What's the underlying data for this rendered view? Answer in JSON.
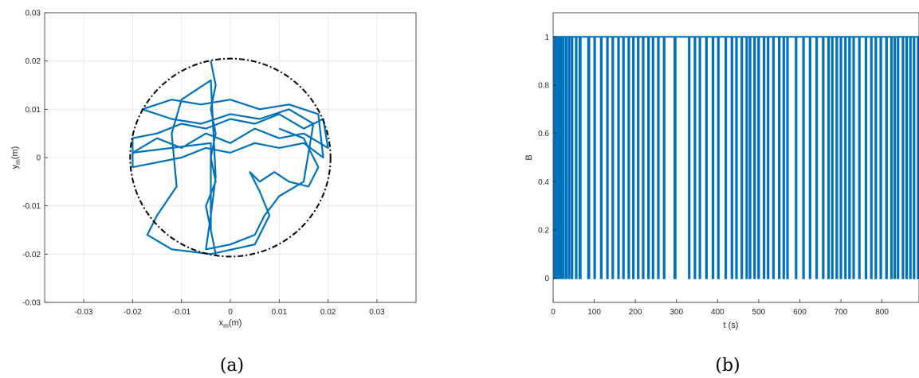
{
  "chart_data": [
    {
      "type": "line",
      "panel_label": "(a)",
      "xlabel": "x",
      "xlabel_sub": "m",
      "xlabel_unit": "(m)",
      "ylabel": "y",
      "ylabel_sub": "m",
      "ylabel_unit": "(m)",
      "xlim": [
        -0.038,
        0.038
      ],
      "ylim": [
        -0.03,
        0.03
      ],
      "xticks": [
        -0.03,
        -0.02,
        -0.01,
        0,
        0.01,
        0.02,
        0.03
      ],
      "xtick_labels": [
        "-0.03",
        "-0.02",
        "-0.01",
        "0",
        "0.01",
        "0.02",
        "0.03"
      ],
      "yticks": [
        -0.03,
        -0.02,
        -0.01,
        0,
        0.01,
        0.02,
        0.03
      ],
      "ytick_labels": [
        "-0.03",
        "-0.02",
        "-0.01",
        "0",
        "0.01",
        "0.02",
        "0.03"
      ],
      "grid": true,
      "series": [
        {
          "style": "solid",
          "color": "#0072BD",
          "x": [
            -0.004,
            -0.003,
            -0.004,
            -0.003,
            -0.004,
            -0.003,
            -0.005,
            -0.004,
            -0.003,
            -0.004,
            -0.004,
            -0.02,
            -0.015,
            -0.01,
            -0.005,
            0,
            0.005,
            0.01,
            0.015,
            0.02,
            0.019,
            0.015,
            0.01,
            0.005,
            0,
            -0.005,
            -0.01,
            -0.015,
            -0.02,
            -0.02,
            -0.015,
            -0.01,
            -0.005,
            0,
            0.005,
            0.01,
            0.015,
            0.019,
            0.018,
            0.012,
            0.006,
            0.0,
            -0.006,
            -0.012,
            -0.018,
            -0.012,
            -0.006,
            0.0,
            0.006,
            0.012,
            0.017,
            0.015,
            0.01,
            0.007,
            0.005,
            0.0,
            -0.005,
            -0.004,
            -0.003,
            -0.004,
            -0.01,
            -0.012,
            -0.011,
            -0.015,
            -0.017,
            -0.012,
            -0.004,
            0.005,
            0.008,
            0.006,
            0.004,
            0.006,
            0.009,
            0.012,
            0.016,
            0.018,
            0.015,
            0.01
          ],
          "y": [
            0.02,
            0.015,
            0.01,
            0.005,
            0.0,
            -0.005,
            -0.01,
            -0.015,
            -0.02,
            -0.015,
            0.003,
            0.001,
            0.004,
            0.002,
            0.005,
            0.003,
            0.006,
            0.004,
            0.005,
            0.002,
            0.008,
            0.006,
            0.009,
            0.007,
            0.008,
            0.006,
            0.007,
            0.005,
            0.004,
            -0.002,
            -0.001,
            0.0,
            0.002,
            0.001,
            0.003,
            0.002,
            0.003,
            0.0,
            0.009,
            0.011,
            0.01,
            0.012,
            0.011,
            0.012,
            0.01,
            0.008,
            0.007,
            0.009,
            0.008,
            0.01,
            0.007,
            -0.005,
            -0.008,
            -0.012,
            -0.016,
            -0.018,
            -0.019,
            -0.012,
            -0.004,
            0.016,
            0.012,
            0.005,
            -0.006,
            -0.012,
            -0.016,
            -0.019,
            -0.02,
            -0.018,
            -0.012,
            -0.007,
            -0.003,
            -0.005,
            -0.003,
            -0.005,
            -0.006,
            -0.002,
            0.004,
            0.006
          ]
        },
        {
          "style": "dashdot",
          "color": "#000000",
          "shape": "circle",
          "center": [
            0,
            0
          ],
          "radius": 0.0205
        }
      ]
    },
    {
      "type": "line",
      "panel_label": "(b)",
      "xlabel": "t (s)",
      "ylabel": "B",
      "xlim": [
        0,
        890
      ],
      "ylim": [
        -0.1,
        1.1
      ],
      "xticks": [
        0,
        100,
        200,
        300,
        400,
        500,
        600,
        700,
        800
      ],
      "xtick_labels": [
        "0",
        "100",
        "200",
        "300",
        "400",
        "500",
        "600",
        "700",
        "800"
      ],
      "yticks": [
        0,
        0.2,
        0.4,
        0.6,
        0.8,
        1
      ],
      "ytick_labels": [
        "0",
        "0.2",
        "0.4",
        "0.6",
        "0.8",
        "1"
      ],
      "grid": false,
      "series": [
        {
          "style": "step",
          "color": "#0072BD",
          "baseline": 1,
          "zero_intervals": [
            [
              3,
              5
            ],
            [
              9,
              11
            ],
            [
              15,
              16
            ],
            [
              19,
              21
            ],
            [
              25,
              26
            ],
            [
              31,
              33
            ],
            [
              38,
              40
            ],
            [
              45,
              47
            ],
            [
              55,
              57
            ],
            [
              64,
              67
            ],
            [
              85,
              88
            ],
            [
              100,
              102
            ],
            [
              116,
              118
            ],
            [
              131,
              133
            ],
            [
              144,
              146
            ],
            [
              158,
              160
            ],
            [
              170,
              172
            ],
            [
              183,
              185
            ],
            [
              194,
              196
            ],
            [
              206,
              208
            ],
            [
              218,
              220
            ],
            [
              231,
              233
            ],
            [
              242,
              244
            ],
            [
              255,
              257
            ],
            [
              269,
              271
            ],
            [
              295,
              298
            ],
            [
              330,
              332
            ],
            [
              344,
              346
            ],
            [
              356,
              358
            ],
            [
              372,
              374
            ],
            [
              388,
              390
            ],
            [
              401,
              403
            ],
            [
              419,
              421
            ],
            [
              434,
              436
            ],
            [
              445,
              447
            ],
            [
              458,
              460
            ],
            [
              470,
              472
            ],
            [
              478,
              480
            ],
            [
              489,
              491
            ],
            [
              499,
              501
            ],
            [
              512,
              514
            ],
            [
              522,
              524
            ],
            [
              535,
              537
            ],
            [
              549,
              551
            ],
            [
              560,
              562
            ],
            [
              569,
              571
            ],
            [
              590,
              592
            ],
            [
              608,
              610
            ],
            [
              624,
              626
            ],
            [
              640,
              642
            ],
            [
              656,
              658
            ],
            [
              669,
              671
            ],
            [
              678,
              680
            ],
            [
              689,
              691
            ],
            [
              699,
              701
            ],
            [
              710,
              712
            ],
            [
              720,
              722
            ],
            [
              730,
              732
            ],
            [
              744,
              746
            ],
            [
              760,
              762
            ],
            [
              773,
              775
            ],
            [
              784,
              786
            ],
            [
              796,
              798
            ],
            [
              810,
              812
            ],
            [
              822,
              824
            ],
            [
              830,
              832
            ],
            [
              838,
              840
            ],
            [
              850,
              852
            ],
            [
              859,
              861
            ],
            [
              868,
              870
            ],
            [
              877,
              879
            ],
            [
              887,
              889
            ]
          ]
        }
      ]
    }
  ]
}
